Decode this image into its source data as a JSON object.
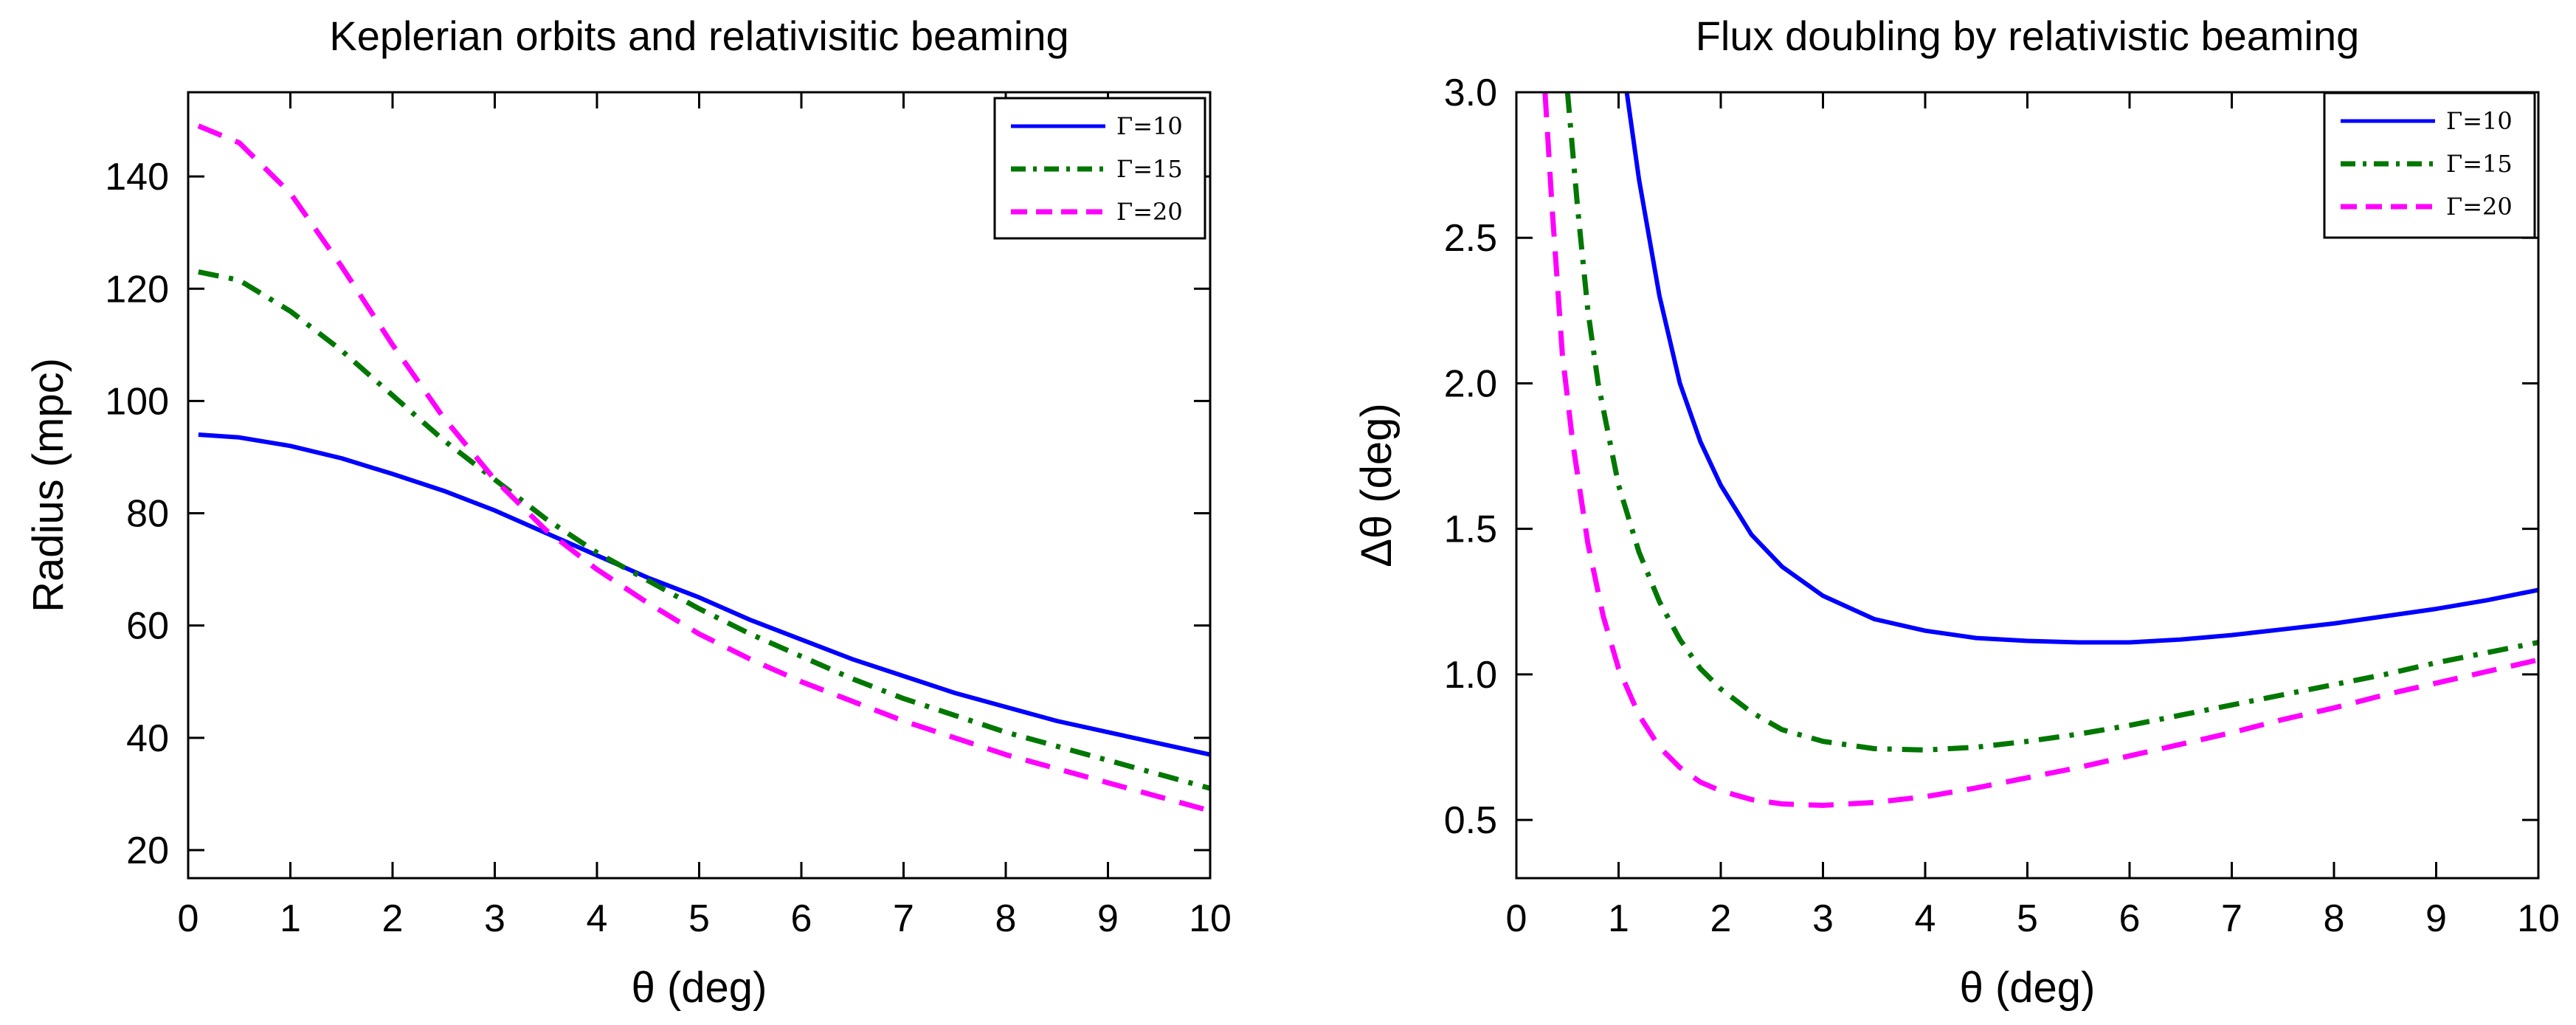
{
  "chart_data": [
    {
      "type": "line",
      "title": "Keplerian orbits and relativisitic beaming",
      "xlabel": "θ (deg)",
      "ylabel": "Radius (mpc)",
      "xlim": [
        0,
        10
      ],
      "ylim": [
        15,
        155
      ],
      "xticks": [
        0,
        1,
        2,
        3,
        4,
        5,
        6,
        7,
        8,
        9,
        10
      ],
      "yticks": [
        20,
        40,
        60,
        80,
        100,
        120,
        140
      ],
      "grid": false,
      "legend_position": "top-right",
      "series": [
        {
          "name": "Γ=10",
          "color": "#0000ff",
          "style": "solid",
          "x": [
            0.1,
            0.5,
            1,
            1.5,
            2,
            2.5,
            3,
            3.5,
            4,
            4.5,
            5,
            5.5,
            6,
            6.5,
            7,
            7.5,
            8,
            8.5,
            9,
            9.5,
            10
          ],
          "y": [
            94,
            93.5,
            92,
            89.8,
            87,
            84,
            80.5,
            76.5,
            72.5,
            68.5,
            65,
            61,
            57.5,
            54,
            51,
            48,
            45.5,
            43,
            41,
            39,
            37
          ]
        },
        {
          "name": "Γ=15",
          "color": "#007700",
          "style": "dashdot",
          "x": [
            0.1,
            0.5,
            1,
            1.5,
            2,
            2.5,
            3,
            3.5,
            4,
            4.5,
            5,
            5.5,
            6,
            6.5,
            7,
            7.5,
            8,
            8.5,
            9,
            9.5,
            10
          ],
          "y": [
            123,
            121.5,
            116,
            109,
            101,
            93,
            86,
            79,
            73,
            68,
            63,
            58.5,
            54.5,
            50.5,
            47,
            44,
            41,
            38.5,
            36,
            33.5,
            31
          ]
        },
        {
          "name": "Γ=20",
          "color": "#ff00ff",
          "style": "dashed",
          "x": [
            0.1,
            0.5,
            1,
            1.5,
            2,
            2.5,
            3,
            3.5,
            4,
            4.5,
            5,
            5.5,
            6,
            6.5,
            7,
            7.5,
            8,
            8.5,
            9,
            9.5,
            10
          ],
          "y": [
            149,
            146,
            137,
            124,
            110,
            97,
            86,
            77,
            70,
            64,
            58.5,
            54,
            50,
            46.5,
            43,
            40,
            37,
            34.5,
            32,
            29.5,
            27
          ]
        }
      ]
    },
    {
      "type": "line",
      "title": "Flux doubling by relativistic beaming",
      "xlabel": "θ (deg)",
      "ylabel": "Δθ (deg)",
      "xlim": [
        0,
        10
      ],
      "ylim": [
        0.3,
        3.0
      ],
      "xticks": [
        0,
        1,
        2,
        3,
        4,
        5,
        6,
        7,
        8,
        9,
        10
      ],
      "yticks": [
        0.5,
        1.0,
        1.5,
        2.0,
        2.5,
        3.0
      ],
      "ytick_labels": [
        "0.5",
        "1.0",
        "1.5",
        "2.0",
        "2.5",
        "3.0"
      ],
      "grid": false,
      "legend_position": "top-right",
      "series": [
        {
          "name": "Γ=10",
          "color": "#0000ff",
          "style": "solid",
          "x": [
            1.08,
            1.2,
            1.4,
            1.6,
            1.8,
            2.0,
            2.3,
            2.6,
            3.0,
            3.5,
            4.0,
            4.5,
            5.0,
            5.5,
            6.0,
            6.5,
            7.0,
            7.5,
            8.0,
            8.5,
            9.0,
            9.5,
            10.0
          ],
          "y": [
            3.0,
            2.7,
            2.3,
            2.0,
            1.8,
            1.65,
            1.48,
            1.37,
            1.27,
            1.19,
            1.15,
            1.125,
            1.115,
            1.11,
            1.11,
            1.12,
            1.135,
            1.155,
            1.175,
            1.2,
            1.225,
            1.255,
            1.29
          ]
        },
        {
          "name": "Γ=15",
          "color": "#007700",
          "style": "dashdot",
          "x": [
            0.5,
            0.6,
            0.7,
            0.8,
            1.0,
            1.2,
            1.4,
            1.6,
            1.8,
            2.0,
            2.3,
            2.6,
            3.0,
            3.5,
            4.0,
            4.5,
            5.0,
            5.5,
            6.0,
            6.5,
            7.0,
            7.5,
            8.0,
            8.5,
            9.0,
            9.5,
            10.0
          ],
          "y": [
            3.0,
            2.6,
            2.25,
            2.0,
            1.65,
            1.42,
            1.25,
            1.12,
            1.02,
            0.95,
            0.87,
            0.81,
            0.77,
            0.745,
            0.74,
            0.75,
            0.77,
            0.795,
            0.825,
            0.86,
            0.895,
            0.93,
            0.965,
            1.0,
            1.04,
            1.075,
            1.11
          ]
        },
        {
          "name": "Γ=20",
          "color": "#ff00ff",
          "style": "dashed",
          "x": [
            0.28,
            0.35,
            0.45,
            0.55,
            0.7,
            0.85,
            1.0,
            1.2,
            1.4,
            1.6,
            1.8,
            2.0,
            2.3,
            2.6,
            3.0,
            3.5,
            4.0,
            4.5,
            5.0,
            5.5,
            6.0,
            6.5,
            7.0,
            7.5,
            8.0,
            8.5,
            9.0,
            9.5,
            10.0
          ],
          "y": [
            3.0,
            2.6,
            2.1,
            1.8,
            1.45,
            1.2,
            1.02,
            0.86,
            0.75,
            0.68,
            0.63,
            0.6,
            0.57,
            0.555,
            0.55,
            0.56,
            0.58,
            0.61,
            0.645,
            0.68,
            0.72,
            0.76,
            0.8,
            0.845,
            0.885,
            0.93,
            0.97,
            1.01,
            1.05
          ]
        }
      ]
    }
  ]
}
